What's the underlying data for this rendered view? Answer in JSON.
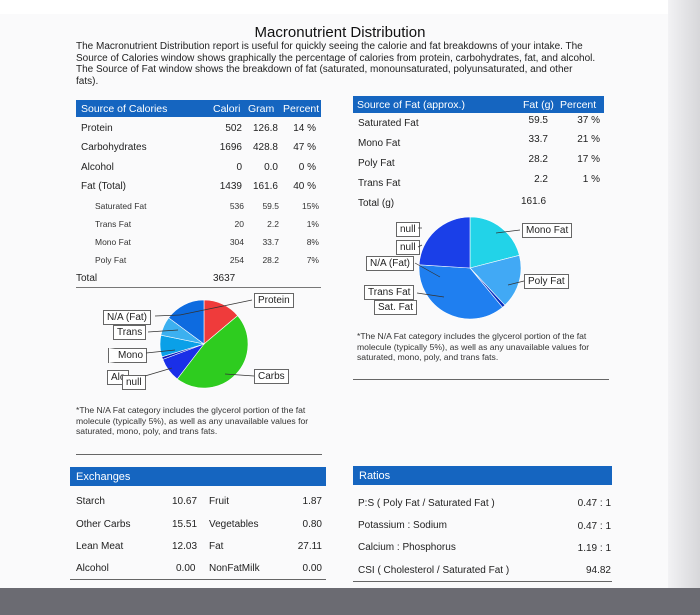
{
  "title": "Macronutrient Distribution",
  "intro": "The Macronutrient Distribution report is useful for quickly seeing the calorie and fat breakdowns of your intake. The Source of Calories window shows graphically the percentage of calories from protein, carbohydrates, fat, and alcohol. The Source of Fat window shows the breakdown of fat (saturated, monounsaturated, polyunsaturated, and other fats).",
  "calories": {
    "headers": {
      "source": "Source of Calories",
      "calori": "Calori",
      "gram": "Gram",
      "percent": "Percent"
    },
    "rows": [
      {
        "name": "Protein",
        "cal": "502",
        "gram": "126.8",
        "pct": "14 %"
      },
      {
        "name": "Carbohydrates",
        "cal": "1696",
        "gram": "428.8",
        "pct": "47 %"
      },
      {
        "name": "Alcohol",
        "cal": "0",
        "gram": "0.0",
        "pct": "0 %"
      },
      {
        "name": "Fat (Total)",
        "cal": "1439",
        "gram": "161.6",
        "pct": "40 %"
      }
    ],
    "subrows": [
      {
        "name": "Saturated Fat",
        "cal": "536",
        "gram": "59.5",
        "pct": "15%"
      },
      {
        "name": "Trans Fat",
        "cal": "20",
        "gram": "2.2",
        "pct": "1%"
      },
      {
        "name": "Mono Fat",
        "cal": "304",
        "gram": "33.7",
        "pct": "8%"
      },
      {
        "name": "Poly Fat",
        "cal": "254",
        "gram": "28.2",
        "pct": "7%"
      }
    ],
    "total_label": "Total",
    "total_value": "3637"
  },
  "fat": {
    "headers": {
      "source": "Source of Fat (approx.)",
      "fatg": "Fat (g)",
      "percent": "Percent"
    },
    "rows": [
      {
        "name": "Saturated Fat",
        "g": "59.5",
        "pct": "37 %"
      },
      {
        "name": "Mono Fat",
        "g": "33.7",
        "pct": "21 %"
      },
      {
        "name": "Poly Fat",
        "g": "28.2",
        "pct": "17 %"
      },
      {
        "name": "Trans Fat",
        "g": "2.2",
        "pct": "1 %"
      }
    ],
    "total_label": "Total (g)",
    "total_value": "161.6"
  },
  "pie_labels": {
    "cal_protein": "Protein",
    "cal_carbs": "Carbs",
    "cal_na": "N/A (Fat)",
    "cal_trans": "Trans",
    "cal_mono": "Mono",
    "cal_alc": "Alc",
    "cal_null": "null",
    "fat_null1": "null",
    "fat_null2": "null",
    "fat_na": "N/A (Fat)",
    "fat_mono": "Mono Fat",
    "fat_poly": "Poly Fat",
    "fat_trans": "Trans Fat",
    "fat_sat": "Sat. Fat"
  },
  "note_left": "*The N/A Fat category includes the glycerol portion of the fat molecule (typically 5%), as well as any unavailable values for saturated, mono, poly, and trans fats.",
  "note_right": "*The N/A Fat category includes the glycerol portion of the fat molecule (typically 5%), as well as any unavailable values for saturated, mono, poly, and trans fats.",
  "exchanges": {
    "header": "Exchanges",
    "rows": [
      {
        "a": "Starch",
        "av": "10.67",
        "b": "Fruit",
        "bv": "1.87"
      },
      {
        "a": "Other Carbs",
        "av": "15.51",
        "b": "Vegetables",
        "bv": "0.80"
      },
      {
        "a": "Lean Meat",
        "av": "12.03",
        "b": "Fat",
        "bv": "27.11"
      },
      {
        "a": "Alcohol",
        "av": "0.00",
        "b": "NonFatMilk",
        "bv": "0.00"
      }
    ]
  },
  "ratios": {
    "header": "Ratios",
    "rows": [
      {
        "name": "P:S ( Poly Fat / Saturated Fat )",
        "val": "0.47 : 1"
      },
      {
        "name": "Potassium : Sodium",
        "val": "0.47 : 1"
      },
      {
        "name": "Calcium : Phosphorus",
        "val": "1.19 : 1"
      },
      {
        "name": "CSI ( Cholesterol / Saturated Fat )",
        "val": "94.82"
      }
    ]
  },
  "chart_data": [
    {
      "type": "pie",
      "slices": [
        {
          "label": "Protein",
          "value": 14,
          "color": "#ef3b3b"
        },
        {
          "label": "Carbs",
          "value": 47,
          "color": "#2ecc1f"
        },
        {
          "label": "N/A (Fat)",
          "value": 9,
          "color": "#1a2fe8"
        },
        {
          "label": "Trans",
          "value": 1,
          "color": "#0a18b8"
        },
        {
          "label": "Mono",
          "value": 8,
          "color": "#0aa0e8"
        },
        {
          "label": "Poly",
          "value": 7,
          "color": "#3cb0f0"
        },
        {
          "label": "Sat",
          "value": 15,
          "color": "#0d6be0"
        }
      ]
    },
    {
      "type": "pie",
      "slices": [
        {
          "label": "Mono Fat",
          "value": 21,
          "color": "#22d3e8"
        },
        {
          "label": "Poly Fat",
          "value": 17,
          "color": "#41a9f5"
        },
        {
          "label": "Trans Fat",
          "value": 1,
          "color": "#0a2fc0"
        },
        {
          "label": "Sat. Fat",
          "value": 37,
          "color": "#1f7ff0"
        },
        {
          "label": "N/A (Fat)",
          "value": 24,
          "color": "#1a3fe8"
        }
      ]
    }
  ]
}
